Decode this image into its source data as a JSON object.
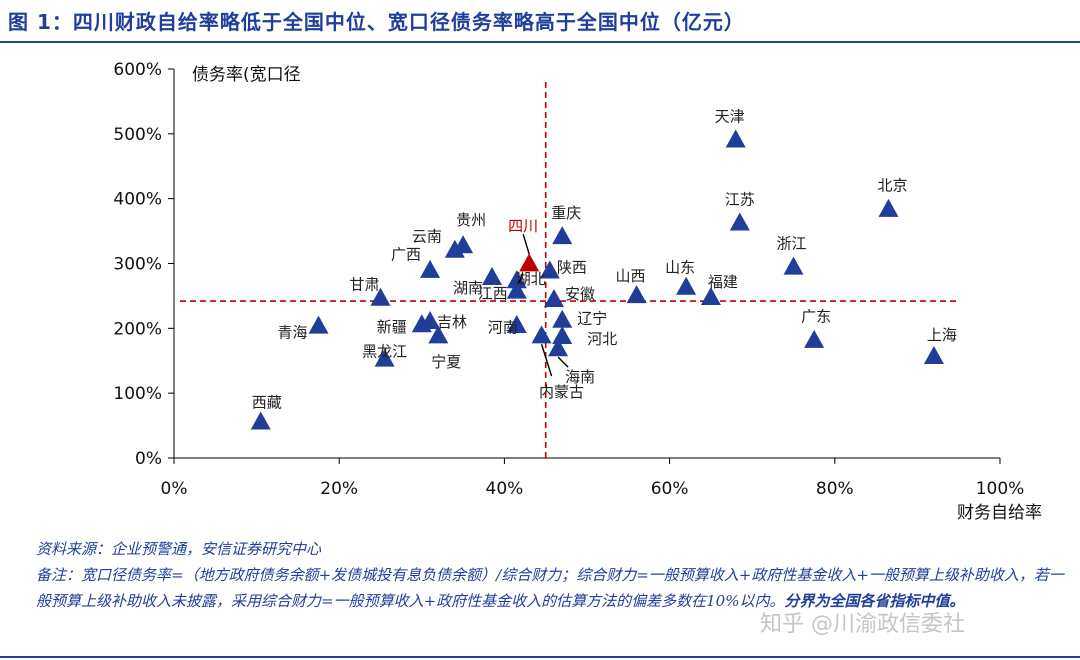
{
  "title": "图 1：四川财政自给率略低于全国中位、宽口径债务率略高于全国中位（亿元）",
  "chart_data": {
    "type": "scatter",
    "title": "",
    "xlabel": "财务自给率",
    "ylabel": "债务率(宽口径",
    "xlim": [
      0,
      1.0
    ],
    "ylim": [
      0,
      6.0
    ],
    "x_ticks": [
      "0%",
      "20%",
      "40%",
      "60%",
      "80%",
      "100%"
    ],
    "y_ticks": [
      "0%",
      "100%",
      "200%",
      "300%",
      "400%",
      "500%",
      "600%"
    ],
    "grid": false,
    "median_x": 0.45,
    "median_y": 2.42,
    "marker": "triangle",
    "colors": {
      "default": "#1f3d99",
      "highlight": "#c00000",
      "median_line": "#c00000"
    },
    "points": [
      {
        "name": "天津",
        "x": 0.68,
        "y": 4.9
      },
      {
        "name": "北京",
        "x": 0.865,
        "y": 3.83
      },
      {
        "name": "江苏",
        "x": 0.685,
        "y": 3.62
      },
      {
        "name": "浙江",
        "x": 0.75,
        "y": 2.94
      },
      {
        "name": "福建",
        "x": 0.65,
        "y": 2.47
      },
      {
        "name": "山东",
        "x": 0.62,
        "y": 2.63
      },
      {
        "name": "山西",
        "x": 0.56,
        "y": 2.5
      },
      {
        "name": "广东",
        "x": 0.775,
        "y": 1.81
      },
      {
        "name": "上海",
        "x": 0.92,
        "y": 1.56
      },
      {
        "name": "重庆",
        "x": 0.47,
        "y": 3.41
      },
      {
        "name": "陕西",
        "x": 0.455,
        "y": 2.88
      },
      {
        "name": "四川",
        "x": 0.43,
        "y": 2.99,
        "highlight": true
      },
      {
        "name": "湖北",
        "x": 0.415,
        "y": 2.73
      },
      {
        "name": "江西",
        "x": 0.415,
        "y": 2.57
      },
      {
        "name": "安徽",
        "x": 0.46,
        "y": 2.44
      },
      {
        "name": "辽宁",
        "x": 0.47,
        "y": 2.12
      },
      {
        "name": "河北",
        "x": 0.47,
        "y": 1.87
      },
      {
        "name": "海南",
        "x": 0.465,
        "y": 1.68
      },
      {
        "name": "内蒙古",
        "x": 0.445,
        "y": 1.88
      },
      {
        "name": "河南",
        "x": 0.415,
        "y": 2.04
      },
      {
        "name": "湖南",
        "x": 0.385,
        "y": 2.78
      },
      {
        "name": "贵州",
        "x": 0.35,
        "y": 3.27
      },
      {
        "name": "云南",
        "x": 0.34,
        "y": 3.2
      },
      {
        "name": "广西",
        "x": 0.31,
        "y": 2.89
      },
      {
        "name": "吉林",
        "x": 0.31,
        "y": 2.1
      },
      {
        "name": "新疆",
        "x": 0.3,
        "y": 2.05
      },
      {
        "name": "宁夏",
        "x": 0.32,
        "y": 1.88
      },
      {
        "name": "黑龙江",
        "x": 0.255,
        "y": 1.52
      },
      {
        "name": "甘肃",
        "x": 0.25,
        "y": 2.46
      },
      {
        "name": "青海",
        "x": 0.175,
        "y": 2.03
      },
      {
        "name": "西藏",
        "x": 0.105,
        "y": 0.55
      }
    ]
  },
  "notes": {
    "source": "资料来源：企业预警通，安信证券研究中心",
    "remark": "备注：宽口径债务率=（地方政府债务余额+发债城投有息负债余额）/综合财力；综合财力=一般预算收入+政府性基金收入+一般预算上级补助收入，若一般预算上级补助收入未披露，采用综合财力=一般预算收入+政府性基金收入的估算方法的偏差多数在10%以内。",
    "remark_emphasis": "分界为全国各省指标中值。"
  },
  "watermark": "知乎 @川渝政信委社"
}
